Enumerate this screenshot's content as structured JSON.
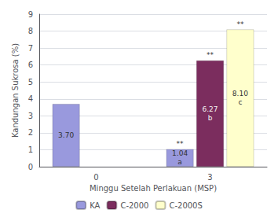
{
  "chart_data": {
    "type": "bar",
    "xlabel": "Minggu Setelah Perlakuan (MSP)",
    "ylabel": "Kandungan Sukrosa (%)",
    "categories": [
      "0",
      "3"
    ],
    "series": [
      {
        "name": "KA",
        "color": "#9999DD",
        "values": [
          3.7,
          1.04
        ],
        "value_labels": [
          "3.70",
          "1.04"
        ],
        "letters": [
          null,
          "a"
        ],
        "marks": [
          null,
          "**"
        ]
      },
      {
        "name": "C-2000",
        "color": "#7B2D5E",
        "values": [
          null,
          6.27
        ],
        "value_labels": [
          null,
          "6.27"
        ],
        "letters": [
          null,
          "b"
        ],
        "marks": [
          null,
          "**"
        ]
      },
      {
        "name": "C-2000S",
        "color": "#FFFFCC",
        "values": [
          null,
          8.1
        ],
        "value_labels": [
          null,
          "8.10"
        ],
        "letters": [
          null,
          "c"
        ],
        "marks": [
          null,
          "**"
        ]
      }
    ],
    "ylim": [
      0,
      9
    ],
    "yticks": [
      0,
      1,
      2,
      3,
      4,
      5,
      6,
      7,
      8,
      9
    ],
    "grid": true,
    "legend": "bottom",
    "data_labels": true
  }
}
